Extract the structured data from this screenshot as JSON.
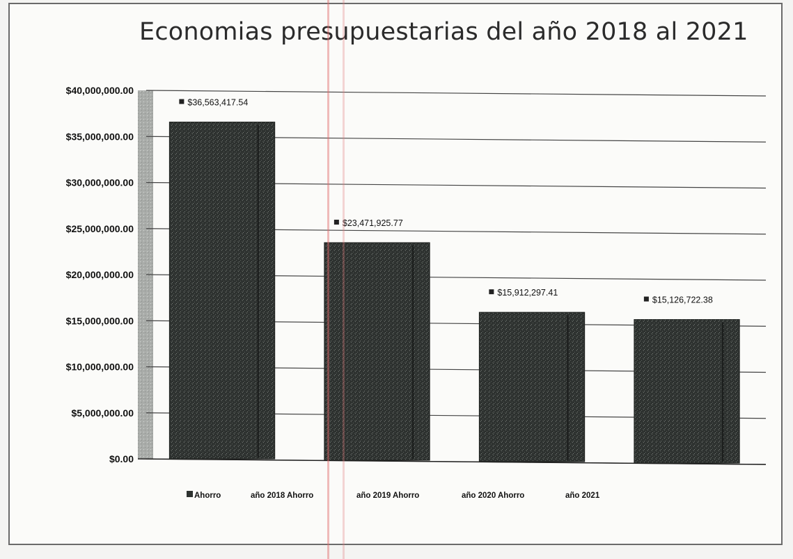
{
  "chart_data": {
    "type": "bar",
    "title": "Economias presupuestarias del año 2018 al 2021",
    "categories": [
      "año 2018",
      "año 2019",
      "año 2020",
      "año 2021"
    ],
    "series": [
      {
        "values": [
          36563417.54,
          23471925.77,
          15912297.41,
          15126722.38
        ],
        "value_labels": [
          "$36,563,417.54",
          "$23,471,925.77",
          "$15,912,297.41",
          "$15,126,722.38"
        ]
      }
    ],
    "ylim": [
      0,
      40000000
    ],
    "yticks": [
      0,
      5000000,
      10000000,
      15000000,
      20000000,
      25000000,
      30000000,
      35000000,
      40000000
    ],
    "ytick_labels": [
      "$0.00",
      "$5,000,000.00",
      "$10,000,000.00",
      "$15,000,000.00",
      "$20,000,000.00",
      "$25,000,000.00",
      "$30,000,000.00",
      "$35,000,000.00",
      "$40,000,000.00"
    ],
    "legend_labels": [
      "Ahorro",
      "año 2018 Ahorro",
      "año 2019 Ahorro",
      "año 2020 Ahorro",
      "año 2021"
    ],
    "grid": true,
    "legend_position": "bottom",
    "bar_color": "#2e3230"
  }
}
